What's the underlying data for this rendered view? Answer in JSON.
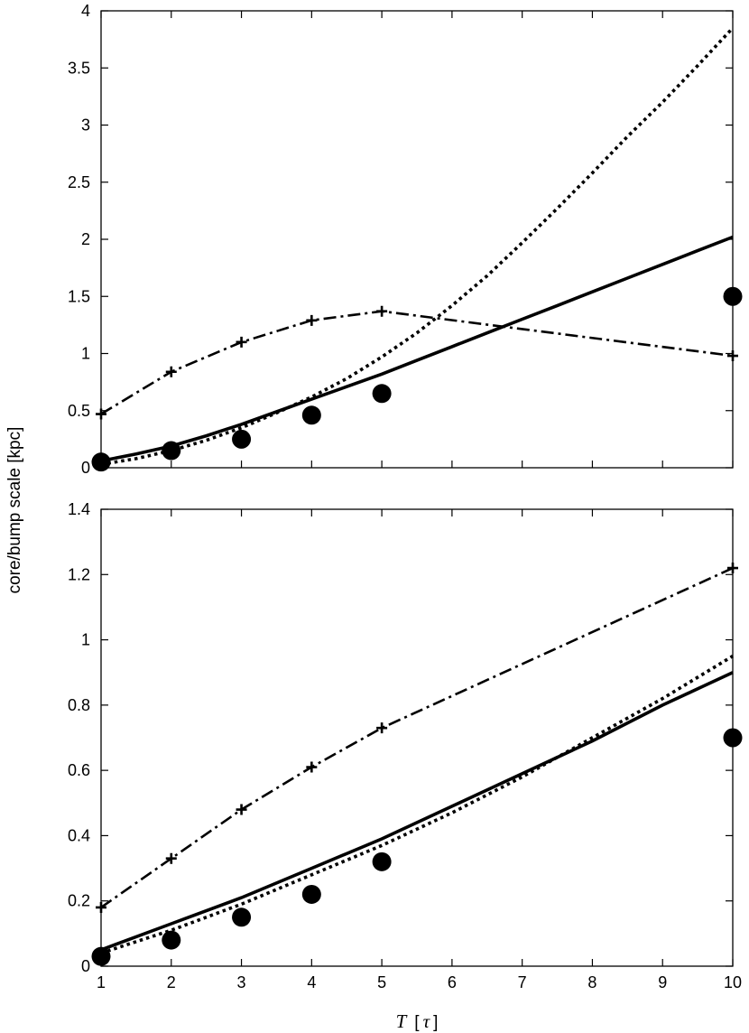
{
  "chart_data": [
    {
      "type": "line",
      "panel": "top",
      "xlabel": "",
      "ylabel": "core/bump scale [kpc]",
      "xlim": [
        1,
        10
      ],
      "ylim": [
        0,
        4
      ],
      "x_ticks": [
        "1",
        "2",
        "3",
        "4",
        "5",
        "6",
        "7",
        "8",
        "9",
        "10"
      ],
      "y_ticks": [
        "0",
        "0.5",
        "1",
        "1.5",
        "2",
        "2.5",
        "3",
        "3.5",
        "4"
      ],
      "series": [
        {
          "name": "solid",
          "style": "solid",
          "x": [
            1,
            1.5,
            2,
            2.5,
            3,
            3.5,
            4,
            4.5,
            5,
            5.5,
            6,
            6.5,
            7,
            7.5,
            8,
            8.5,
            9,
            9.5,
            10
          ],
          "values": [
            0.06,
            0.12,
            0.19,
            0.28,
            0.38,
            0.49,
            0.6,
            0.71,
            0.82,
            0.94,
            1.06,
            1.18,
            1.3,
            1.42,
            1.54,
            1.66,
            1.78,
            1.9,
            2.02
          ]
        },
        {
          "name": "dotted",
          "style": "dotted",
          "x": [
            1,
            1.5,
            2,
            2.5,
            3,
            3.5,
            4,
            4.5,
            5,
            5.5,
            6,
            6.5,
            7,
            7.5,
            8,
            8.5,
            9,
            9.5,
            10
          ],
          "values": [
            0.03,
            0.08,
            0.15,
            0.24,
            0.35,
            0.48,
            0.62,
            0.78,
            0.97,
            1.18,
            1.42,
            1.68,
            1.97,
            2.27,
            2.58,
            2.9,
            3.2,
            3.52,
            3.85
          ]
        },
        {
          "name": "dash-dot",
          "style": "dashdot",
          "marker": "+",
          "x": [
            1,
            2,
            3,
            4,
            5,
            10
          ],
          "values": [
            0.47,
            0.84,
            1.1,
            1.29,
            1.37,
            0.98
          ]
        },
        {
          "name": "dots",
          "style": "points",
          "marker": "circle",
          "x": [
            1,
            2,
            3,
            4,
            5,
            10
          ],
          "values": [
            0.05,
            0.15,
            0.25,
            0.46,
            0.65,
            1.5
          ]
        }
      ]
    },
    {
      "type": "line",
      "panel": "bottom",
      "xlabel": "T [τ]",
      "ylabel": "core/bump scale [kpc]",
      "xlim": [
        1,
        10
      ],
      "ylim": [
        0,
        1.4
      ],
      "x_ticks": [
        "1",
        "2",
        "3",
        "4",
        "5",
        "6",
        "7",
        "8",
        "9",
        "10"
      ],
      "y_ticks": [
        "0",
        "0.2",
        "0.4",
        "0.6",
        "0.8",
        "1",
        "1.2",
        "1.4"
      ],
      "series": [
        {
          "name": "solid",
          "style": "solid",
          "x": [
            1,
            2,
            3,
            4,
            5,
            6,
            7,
            8,
            9,
            10
          ],
          "values": [
            0.05,
            0.13,
            0.21,
            0.3,
            0.39,
            0.49,
            0.59,
            0.69,
            0.8,
            0.9
          ]
        },
        {
          "name": "dotted",
          "style": "dotted",
          "x": [
            1,
            2,
            3,
            4,
            5,
            6,
            7,
            8,
            9,
            10
          ],
          "values": [
            0.04,
            0.11,
            0.19,
            0.28,
            0.37,
            0.47,
            0.58,
            0.7,
            0.82,
            0.95
          ]
        },
        {
          "name": "dash-dot",
          "style": "dashdot",
          "marker": "+",
          "x": [
            1,
            2,
            3,
            4,
            5,
            10
          ],
          "values": [
            0.18,
            0.33,
            0.48,
            0.61,
            0.73,
            1.22
          ]
        },
        {
          "name": "dots",
          "style": "points",
          "marker": "circle",
          "x": [
            1,
            2,
            3,
            4,
            5,
            10
          ],
          "values": [
            0.03,
            0.08,
            0.15,
            0.22,
            0.32,
            0.7
          ]
        }
      ]
    }
  ],
  "labels": {
    "ylabel": "core/bump scale [kpc]",
    "xlabel_var": "T",
    "xlabel_unit_open": "[",
    "xlabel_unit_sym": "τ",
    "xlabel_unit_close": "]"
  }
}
